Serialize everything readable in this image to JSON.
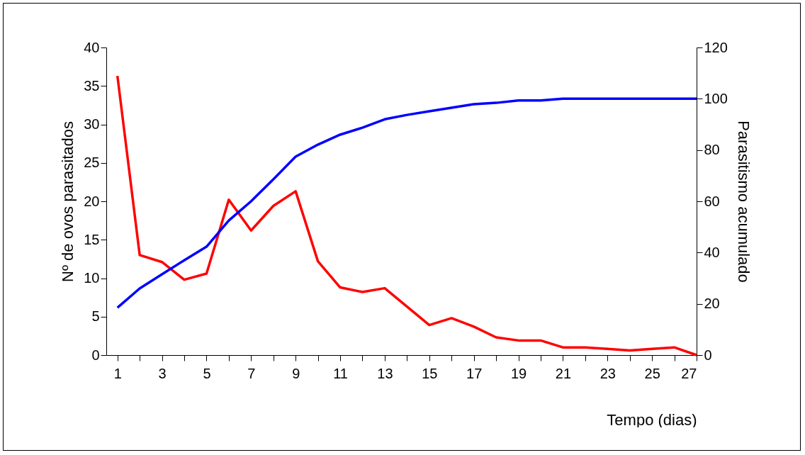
{
  "chart_data": {
    "type": "line",
    "xlabel": "Tempo (dias)",
    "ylabel": "Nº de ovos parasitados",
    "y2label": "Parasitismo acumulado",
    "x": [
      1,
      2,
      3,
      4,
      5,
      6,
      7,
      8,
      9,
      10,
      11,
      12,
      13,
      14,
      15,
      16,
      17,
      18,
      19,
      20,
      21,
      22,
      23,
      24,
      25,
      26,
      27
    ],
    "series": [
      {
        "color": "#ff0000",
        "values": [
          36.3,
          13.0,
          12.1,
          9.8,
          10.6,
          20.2,
          16.2,
          19.4,
          21.3,
          12.2,
          8.8,
          8.2,
          8.7,
          6.3,
          3.9,
          4.8,
          3.7,
          2.3,
          1.9,
          1.9,
          1.0,
          1.0,
          0.8,
          0.6,
          0.8,
          1.0,
          0
        ]
      },
      {
        "color": "#0000ff",
        "axis": "y2",
        "values": [
          18.5,
          26,
          31.5,
          37,
          42.3,
          52.5,
          60,
          68.6,
          77.4,
          82.1,
          86,
          88.7,
          92,
          93.7,
          95.1,
          96.5,
          97.9,
          98.4,
          99.3,
          99.3,
          100,
          100,
          100,
          100,
          100,
          100,
          100
        ]
      }
    ],
    "xlim": [
      0.5,
      27
    ],
    "xticks": [
      1,
      {
        "value": 2,
        "label": null
      },
      3,
      {
        "value": 4,
        "label": null
      },
      5,
      {
        "value": 6,
        "label": null
      },
      7,
      {
        "value": 8,
        "label": null
      },
      9,
      {
        "value": 10,
        "label": null
      },
      11,
      {
        "value": 12,
        "label": null
      },
      13,
      {
        "value": 14,
        "label": null
      },
      15,
      {
        "value": 16,
        "label": null
      },
      17,
      {
        "value": 18,
        "label": null
      },
      19,
      {
        "value": 20,
        "label": null
      },
      21,
      {
        "value": 22,
        "label": null
      },
      23,
      {
        "value": 24,
        "label": null
      },
      25,
      {
        "value": 26,
        "label": null
      },
      27
    ],
    "ylim": [
      0,
      40
    ],
    "yticks": [
      0,
      5,
      10,
      15,
      20,
      25,
      30,
      35,
      40
    ],
    "y2lim": [
      0,
      120
    ],
    "y2ticks": [
      0,
      20,
      40,
      60,
      80,
      100,
      120
    ],
    "grid": false,
    "marker": "none",
    "line_style": "solid"
  }
}
